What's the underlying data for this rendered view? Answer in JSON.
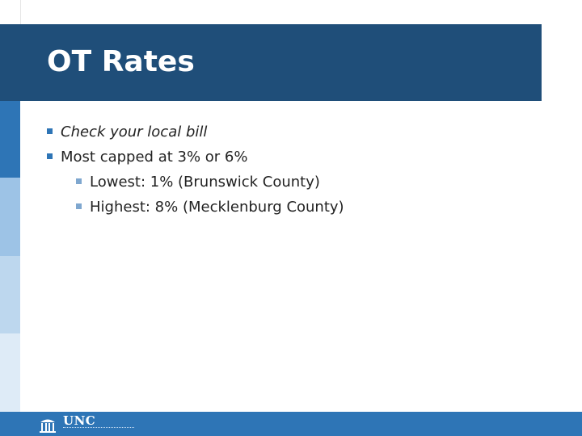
{
  "slide": {
    "title": "OT Rates",
    "bullets": [
      {
        "text": "Check your local bill",
        "level": 1,
        "italic": true
      },
      {
        "text": "Most capped at 3% or 6%",
        "level": 1,
        "italic": false
      },
      {
        "text": "Lowest: 1% (Brunswick County)",
        "level": 2,
        "italic": false
      },
      {
        "text": "Highest: 8% (Mecklenburg County)",
        "level": 2,
        "italic": false
      }
    ]
  },
  "footer": {
    "logo_text": "UNC",
    "logo_icon": "old-well-icon"
  },
  "colors": {
    "title_bar": "#1f4e79",
    "accent": "#2e75b6",
    "light_blue": "#9dc3e6",
    "pale_blue": "#bdd7ee"
  }
}
